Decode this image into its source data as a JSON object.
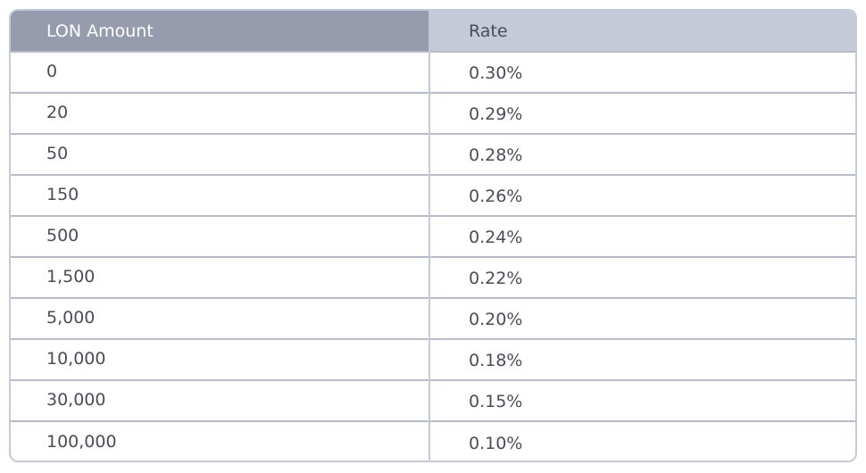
{
  "table": {
    "headers": {
      "amount": "LON Amount",
      "rate": "Rate"
    },
    "rows": [
      {
        "amount": "0",
        "rate": "0.30%"
      },
      {
        "amount": "20",
        "rate": "0.29%"
      },
      {
        "amount": "50",
        "rate": "0.28%"
      },
      {
        "amount": "150",
        "rate": "0.26%"
      },
      {
        "amount": "500",
        "rate": "0.24%"
      },
      {
        "amount": "1,500",
        "rate": "0.22%"
      },
      {
        "amount": "5,000",
        "rate": "0.20%"
      },
      {
        "amount": "10,000",
        "rate": "0.18%"
      },
      {
        "amount": "30,000",
        "rate": "0.15%"
      },
      {
        "amount": "100,000",
        "rate": "0.10%"
      }
    ]
  },
  "colors": {
    "header_left_bg": "#969bae",
    "header_right_bg": "#c5cad9",
    "border": "#c5cad9",
    "text": "#4a4d55"
  }
}
